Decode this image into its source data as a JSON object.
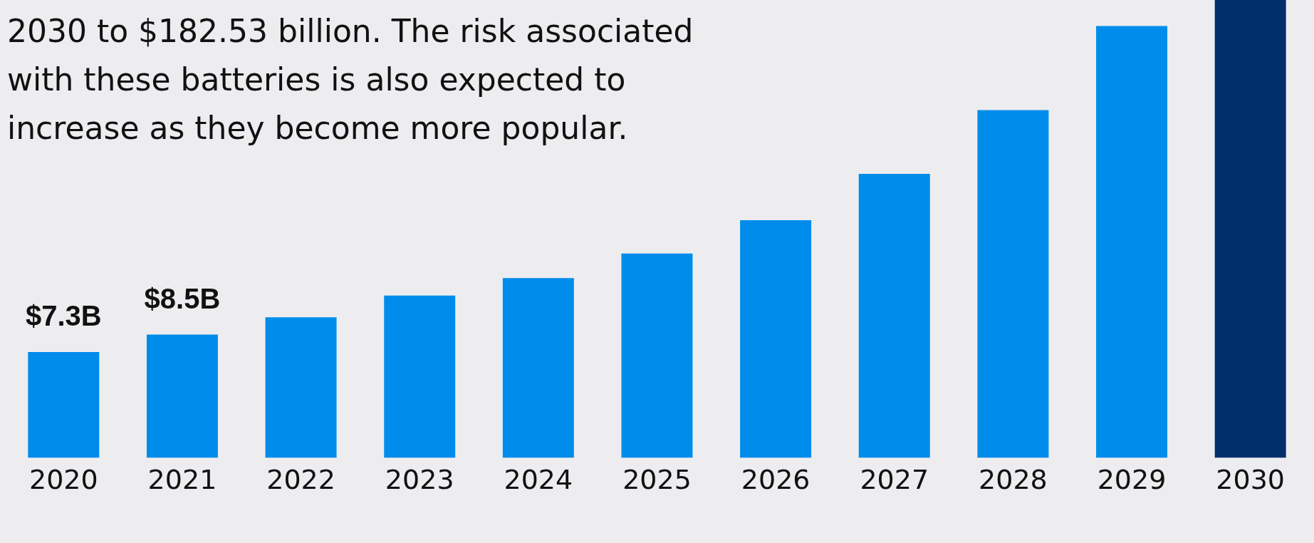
{
  "chart_data": {
    "type": "bar",
    "ylim": [
      0,
      31.6
    ],
    "annotations": [
      "2030 to $182.53 billion. The risk associated\nwith these batteries is also expected to\nincrease as they become more popular."
    ],
    "categories": [
      "2020",
      "2021",
      "2022",
      "2023",
      "2024",
      "2025",
      "2026",
      "2027",
      "2028",
      "2029",
      "2030"
    ],
    "values": [
      7.3,
      8.5,
      9.7,
      11.2,
      12.4,
      14.1,
      16.4,
      19.6,
      24.0,
      29.8,
      31.6
    ],
    "colors": [
      "#008cea",
      "#008cea",
      "#008cea",
      "#008cea",
      "#008cea",
      "#008cea",
      "#008cea",
      "#008cea",
      "#008cea",
      "#008cea",
      "#002f6c"
    ],
    "value_labels": [
      "$7.3B",
      "$8.5B",
      null,
      null,
      null,
      null,
      null,
      null,
      null,
      null,
      null
    ]
  }
}
